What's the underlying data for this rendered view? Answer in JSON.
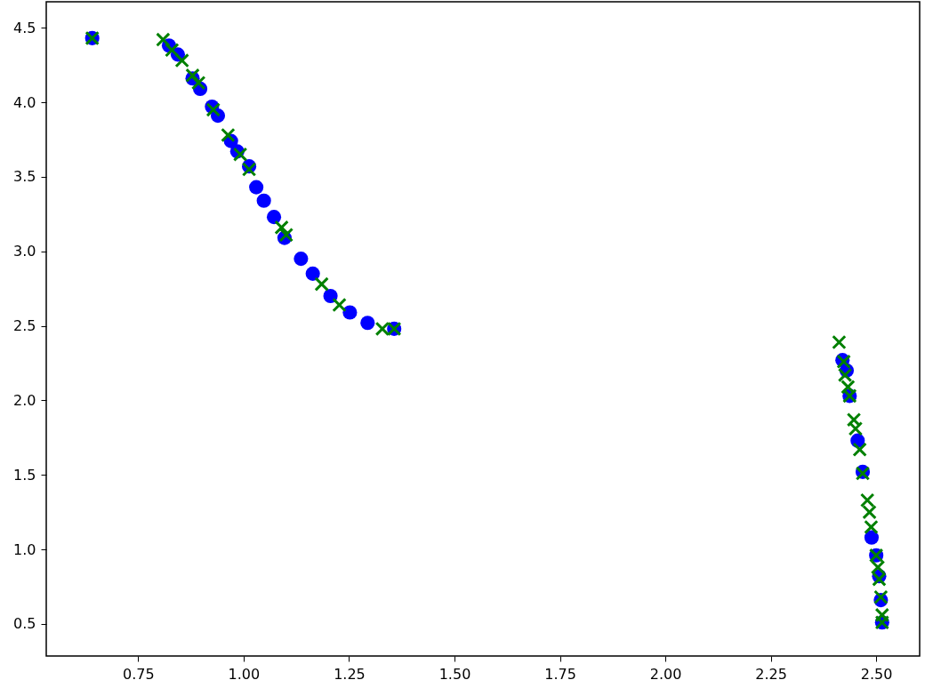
{
  "chart_data": {
    "type": "scatter",
    "xlim": [
      0.532,
      2.603
    ],
    "ylim": [
      0.285,
      4.674
    ],
    "xticks": [
      0.75,
      {
        "value": 1,
        "label": "1.00"
      },
      1.25,
      {
        "value": 1.5,
        "label": "1.50"
      },
      1.75,
      {
        "value": 2,
        "label": "2.00"
      },
      2.25,
      {
        "value": 2.5,
        "label": "2.50"
      }
    ],
    "yticks": [
      0.5,
      {
        "value": 1,
        "label": "1.0"
      },
      1.5,
      {
        "value": 2,
        "label": "2.0"
      },
      2.5,
      {
        "value": 3,
        "label": "3.0"
      },
      3.5,
      {
        "value": 4,
        "label": "4.0"
      },
      4.5
    ],
    "grid": false,
    "series": [
      {
        "color": "#0000ff",
        "marker": "circle",
        "x": [
          0.641,
          0.823,
          0.844,
          0.879,
          0.897,
          0.925,
          0.939,
          0.97,
          0.985,
          1.013,
          1.03,
          1.048,
          1.072,
          1.097,
          1.136,
          1.164,
          1.206,
          1.252,
          1.294,
          1.357,
          2.42,
          2.43,
          2.437,
          2.456,
          2.468,
          2.489,
          2.5,
          2.507,
          2.511,
          2.514
        ],
        "values": [
          4.43,
          4.38,
          4.32,
          4.16,
          4.09,
          3.97,
          3.91,
          3.74,
          3.67,
          3.57,
          3.43,
          3.34,
          3.23,
          3.09,
          2.95,
          2.85,
          2.7,
          2.59,
          2.52,
          2.48,
          2.27,
          2.2,
          2.03,
          1.73,
          1.52,
          1.08,
          0.96,
          0.82,
          0.66,
          0.51
        ]
      },
      {
        "color": "#008000",
        "marker": "cross",
        "x": [
          0.641,
          0.809,
          0.83,
          0.854,
          0.879,
          0.893,
          0.928,
          0.963,
          0.992,
          1.013,
          1.09,
          1.101,
          1.185,
          1.227,
          1.329,
          1.357,
          2.412,
          2.423,
          2.426,
          2.433,
          2.437,
          2.447,
          2.451,
          2.461,
          2.468,
          2.479,
          2.484,
          2.488,
          2.5,
          2.504,
          2.507,
          2.511,
          2.514,
          2.514
        ],
        "values": [
          4.43,
          4.42,
          4.35,
          4.28,
          4.18,
          4.13,
          3.95,
          3.78,
          3.65,
          3.55,
          3.16,
          3.11,
          2.78,
          2.64,
          2.48,
          2.48,
          2.39,
          2.26,
          2.17,
          2.09,
          2.03,
          1.87,
          1.81,
          1.67,
          1.51,
          1.33,
          1.25,
          1.15,
          0.96,
          0.88,
          0.8,
          0.68,
          0.56,
          0.51
        ]
      }
    ]
  }
}
